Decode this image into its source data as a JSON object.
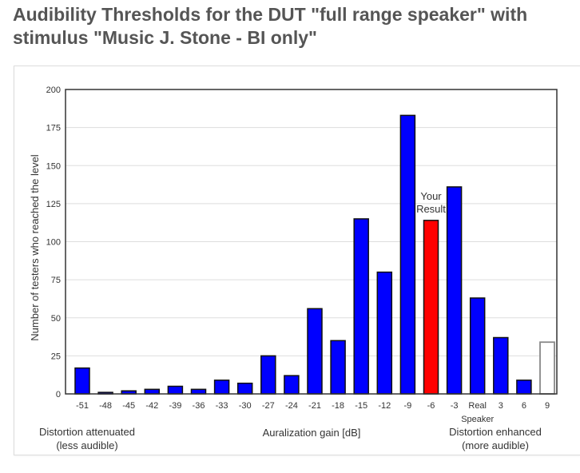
{
  "page": {
    "title_line1": "Audibility Thresholds for the DUT \"full range speaker\" with",
    "title_line2": "stimulus \"Music J. Stone - BI only\""
  },
  "colors": {
    "bar_fill": "#0000ff",
    "highlight_fill": "#ff0000",
    "outline_fill": "#ffffff",
    "outline_stroke": "#888888",
    "grid": "#dddddd",
    "title_text": "#555555"
  },
  "chart_data": {
    "type": "bar",
    "ylabel": "Number of testers who reached the level",
    "xlabel": "Auralization gain [dB]",
    "ylim": [
      0,
      200
    ],
    "yticks": [
      0,
      25,
      50,
      75,
      100,
      125,
      150,
      175,
      200
    ],
    "grid": true,
    "categories": [
      "-51",
      "-48",
      "-45",
      "-42",
      "-39",
      "-36",
      "-33",
      "-30",
      "-27",
      "-24",
      "-21",
      "-18",
      "-15",
      "-12",
      "-9",
      "-6",
      "-3",
      "Real",
      "3",
      "6",
      "9"
    ],
    "category_sublabels": {
      "Real": "Speaker"
    },
    "values": [
      17,
      1,
      2,
      3,
      5,
      3,
      9,
      7,
      25,
      12,
      56,
      35,
      115,
      80,
      183,
      114,
      136,
      63,
      37,
      9,
      34
    ],
    "styles": [
      "normal",
      "normal",
      "normal",
      "normal",
      "normal",
      "normal",
      "normal",
      "normal",
      "normal",
      "normal",
      "normal",
      "normal",
      "normal",
      "normal",
      "normal",
      "highlight",
      "normal",
      "normal",
      "normal",
      "normal",
      "outline"
    ],
    "annotation": {
      "category": "-6",
      "line1": "Your",
      "line2": "Result"
    },
    "left_note": {
      "line1": "Distortion attenuated",
      "line2": "(less audible)"
    },
    "right_note": {
      "line1": "Distortion enhanced",
      "line2": "(more audible)"
    }
  }
}
